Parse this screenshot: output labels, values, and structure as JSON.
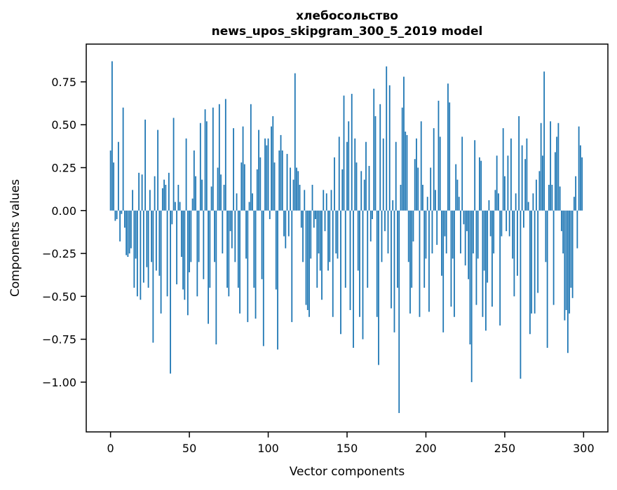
{
  "figure": {
    "title_line1": "хлебосольство",
    "title_line2": "news_upos_skipgram_300_5_2019 model",
    "xlabel": "Vector components",
    "ylabel": "Components values",
    "bar_color": "#1f77b4",
    "axis_color": "#000000",
    "background": "#ffffff"
  },
  "chart_data": {
    "type": "bar",
    "title": "хлебосольство\nnews_upos_skipgram_300_5_2019 model",
    "xlabel": "Vector components",
    "ylabel": "Components values",
    "x_ticks": [
      0,
      50,
      100,
      150,
      200,
      250,
      300
    ],
    "y_ticks": [
      0.75,
      0.5,
      0.25,
      0.0,
      -0.25,
      -0.5,
      -0.75,
      -1.0
    ],
    "xlim": [
      -15.4,
      315.4
    ],
    "ylim": [
      -1.29,
      0.97
    ],
    "grid": false,
    "legend": "none",
    "bar_color": "#1f77b4",
    "x_start": 0,
    "values": [
      0.35,
      0.87,
      0.28,
      -0.06,
      -0.05,
      0.4,
      -0.18,
      -0.02,
      0.6,
      -0.1,
      -0.26,
      -0.27,
      -0.25,
      -0.22,
      0.12,
      -0.45,
      -0.28,
      -0.5,
      0.22,
      -0.52,
      0.21,
      -0.42,
      0.53,
      -0.33,
      -0.45,
      0.12,
      -0.3,
      -0.77,
      0.2,
      -0.35,
      0.47,
      -0.38,
      -0.6,
      0.13,
      0.18,
      0.15,
      -0.5,
      0.22,
      -0.95,
      -0.08,
      0.54,
      0.05,
      -0.43,
      0.15,
      0.05,
      -0.27,
      -0.46,
      -0.52,
      0.42,
      -0.61,
      -0.36,
      -0.3,
      0.07,
      0.35,
      0.2,
      -0.5,
      -0.3,
      0.51,
      0.18,
      -0.4,
      0.59,
      0.52,
      -0.66,
      -0.45,
      0.14,
      0.6,
      -0.3,
      -0.78,
      0.25,
      0.62,
      0.21,
      -0.25,
      0.15,
      0.65,
      -0.45,
      -0.5,
      -0.12,
      -0.22,
      0.48,
      -0.3,
      0.1,
      -0.45,
      -0.6,
      0.28,
      0.49,
      0.27,
      -0.28,
      -0.65,
      0.05,
      0.62,
      0.1,
      -0.45,
      -0.63,
      0.24,
      0.47,
      0.31,
      -0.4,
      -0.79,
      0.42,
      0.38,
      0.42,
      -0.05,
      0.49,
      0.55,
      0.28,
      -0.46,
      -0.81,
      0.35,
      0.44,
      0.35,
      -0.15,
      -0.22,
      0.33,
      -0.15,
      0.25,
      -0.65,
      0.18,
      0.8,
      0.25,
      0.23,
      0.15,
      -0.1,
      -0.3,
      0.12,
      -0.55,
      -0.58,
      -0.62,
      -0.28,
      0.15,
      -0.1,
      -0.05,
      -0.45,
      -0.25,
      -0.35,
      -0.52,
      0.12,
      -0.12,
      0.1,
      -0.35,
      -0.3,
      0.12,
      -0.62,
      0.31,
      -0.25,
      -0.28,
      0.43,
      -0.72,
      0.24,
      0.67,
      -0.45,
      0.4,
      0.52,
      -0.58,
      0.68,
      -0.8,
      0.42,
      0.28,
      -0.35,
      -0.62,
      0.23,
      -0.75,
      0.18,
      0.4,
      -0.45,
      0.26,
      -0.18,
      -0.05,
      0.71,
      0.55,
      -0.62,
      -0.9,
      0.62,
      -0.3,
      0.42,
      -0.12,
      0.84,
      -0.25,
      0.73,
      -0.57,
      0.06,
      -0.71,
      0.4,
      -0.45,
      -1.18,
      0.15,
      0.6,
      0.78,
      0.46,
      0.44,
      -0.3,
      -0.6,
      -0.45,
      -0.18,
      0.3,
      0.42,
      0.25,
      -0.62,
      0.52,
      0.15,
      -0.45,
      -0.28,
      0.08,
      -0.59,
      0.25,
      -0.25,
      0.48,
      0.12,
      -0.2,
      0.64,
      0.43,
      -0.38,
      -0.71,
      -0.15,
      -0.25,
      0.74,
      0.63,
      -0.56,
      -0.28,
      -0.62,
      0.27,
      0.18,
      0.08,
      -0.25,
      0.43,
      -0.08,
      -0.32,
      -0.12,
      -0.4,
      -0.78,
      -1.0,
      -0.25,
      0.41,
      -0.55,
      -0.28,
      0.31,
      0.29,
      -0.62,
      -0.35,
      -0.7,
      -0.42,
      0.06,
      -0.15,
      -0.56,
      -0.25,
      0.12,
      0.32,
      0.1,
      -0.67,
      -0.15,
      0.48,
      0.2,
      -0.12,
      0.32,
      -0.15,
      0.42,
      -0.28,
      -0.5,
      0.1,
      -0.38,
      0.55,
      -0.98,
      0.38,
      -0.1,
      0.3,
      0.42,
      0.05,
      -0.72,
      -0.6,
      0.1,
      -0.6,
      0.18,
      -0.48,
      0.23,
      0.51,
      0.32,
      0.81,
      -0.3,
      -0.8,
      0.15,
      0.52,
      0.15,
      -0.55,
      0.34,
      0.43,
      0.51,
      0.14,
      -0.12,
      -0.25,
      -0.64,
      -0.58,
      -0.83,
      -0.6,
      -0.45,
      -0.51,
      0.08,
      0.2,
      -0.22,
      0.49,
      0.38,
      0.31
    ]
  }
}
